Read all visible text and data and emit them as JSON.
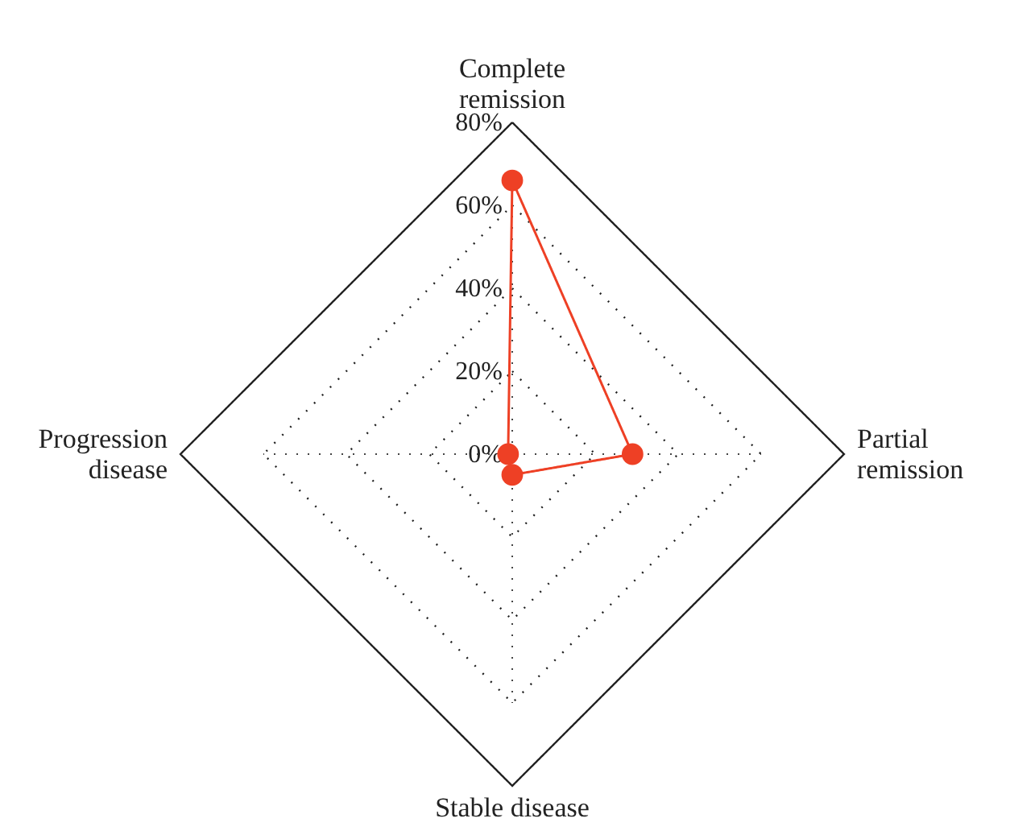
{
  "chart_data": {
    "type": "radar",
    "categories": [
      "Complete remission",
      "Partial remission",
      "Stable disease",
      "Progression disease"
    ],
    "series": [
      {
        "color": "#ee4025",
        "values": [
          66,
          29,
          5,
          1
        ]
      }
    ],
    "ylim": [
      0,
      80
    ],
    "yticks": [
      {
        "value": 0,
        "label": "0%"
      },
      {
        "value": 20,
        "label": "20%"
      },
      {
        "value": 40,
        "label": "40%"
      },
      {
        "value": 60,
        "label": "60%"
      },
      {
        "value": 80,
        "label": "80%"
      }
    ],
    "grid": true,
    "marker": "circle",
    "line_style": "solid"
  }
}
